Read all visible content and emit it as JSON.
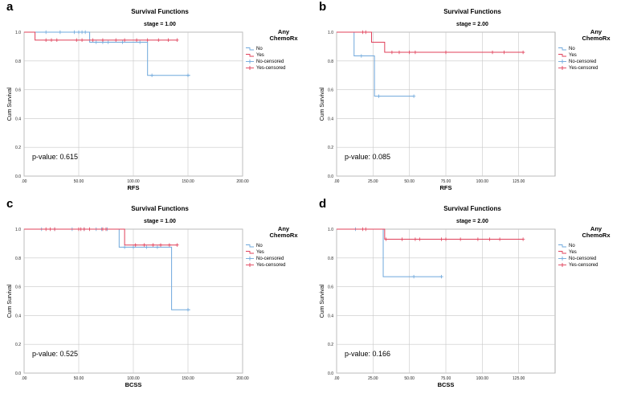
{
  "chart_data": [
    {
      "type": "line",
      "panel_label": "a",
      "title": "Survival Functions",
      "subtitle": "stage = 1.00",
      "xlabel": "RFS",
      "ylabel": "Cum Survival",
      "xlim": [
        0,
        200
      ],
      "ylim": [
        0,
        1
      ],
      "xticks": [
        0,
        50,
        100,
        150,
        200
      ],
      "xtick_labels": [
        ".00",
        "50.00",
        "100.00",
        "150.00",
        "200.00"
      ],
      "yticks": [
        0,
        0.2,
        0.4,
        0.6,
        0.8,
        1.0
      ],
      "ytick_labels": [
        "0.0",
        "0.2",
        "0.4",
        "0.6",
        "0.8",
        "1.0"
      ],
      "grid": true,
      "p_value_text": "p-value: 0.615",
      "legend": {
        "title": "Any ChemoRx",
        "entries": [
          "No",
          "Yes",
          "No-censored",
          "Yes-censored"
        ],
        "position": "right"
      },
      "series": [
        {
          "name": "No",
          "color": "#6fa8dc",
          "steps": [
            [
              0,
              1.0
            ],
            [
              60,
              0.93
            ],
            [
              113,
              0.7
            ],
            [
              152,
              0.7
            ]
          ],
          "censored": [
            [
              20,
              1.0
            ],
            [
              33,
              1.0
            ],
            [
              46,
              1.0
            ],
            [
              50,
              1.0
            ],
            [
              53,
              1.0
            ],
            [
              56,
              1.0
            ],
            [
              66,
              0.93
            ],
            [
              72,
              0.93
            ],
            [
              77,
              0.93
            ],
            [
              90,
              0.93
            ],
            [
              106,
              0.93
            ],
            [
              117,
              0.7
            ],
            [
              150,
              0.7
            ]
          ]
        },
        {
          "name": "Yes",
          "color": "#e0405a",
          "steps": [
            [
              0,
              1.0
            ],
            [
              10,
              0.945
            ],
            [
              140,
              0.945
            ]
          ],
          "censored": [
            [
              20,
              0.945
            ],
            [
              25,
              0.945
            ],
            [
              30,
              0.945
            ],
            [
              48,
              0.945
            ],
            [
              53,
              0.945
            ],
            [
              63,
              0.945
            ],
            [
              72,
              0.945
            ],
            [
              84,
              0.945
            ],
            [
              92,
              0.945
            ],
            [
              103,
              0.945
            ],
            [
              113,
              0.945
            ],
            [
              123,
              0.945
            ],
            [
              132,
              0.945
            ],
            [
              140,
              0.945
            ]
          ]
        }
      ]
    },
    {
      "type": "line",
      "panel_label": "b",
      "title": "Survival Functions",
      "subtitle": "stage = 2.00",
      "xlabel": "RFS",
      "ylabel": "Cum Survival",
      "xlim": [
        0,
        150
      ],
      "ylim": [
        0,
        1
      ],
      "xticks": [
        0,
        25,
        50,
        75,
        100,
        125
      ],
      "xtick_labels": [
        ".00",
        "25.00",
        "50.00",
        "75.00",
        "100.00",
        "125.00"
      ],
      "yticks": [
        0,
        0.2,
        0.4,
        0.6,
        0.8,
        1.0
      ],
      "ytick_labels": [
        "0.0",
        "0.2",
        "0.4",
        "0.6",
        "0.8",
        "1.0"
      ],
      "grid": true,
      "p_value_text": "p-value: 0.085",
      "legend": {
        "title": "Any ChemoRx",
        "entries": [
          "No",
          "Yes",
          "No-censored",
          "Yes-censored"
        ],
        "position": "right"
      },
      "series": [
        {
          "name": "No",
          "color": "#6fa8dc",
          "steps": [
            [
              0,
              1.0
            ],
            [
              12,
              0.835
            ],
            [
              26,
              0.555
            ],
            [
              53,
              0.555
            ]
          ],
          "censored": [
            [
              17,
              0.835
            ],
            [
              29,
              0.555
            ],
            [
              53,
              0.555
            ]
          ]
        },
        {
          "name": "Yes",
          "color": "#e0405a",
          "steps": [
            [
              0,
              1.0
            ],
            [
              24,
              0.93
            ],
            [
              33,
              0.86
            ],
            [
              128,
              0.86
            ]
          ],
          "censored": [
            [
              18,
              1.0
            ],
            [
              20,
              1.0
            ],
            [
              38,
              0.86
            ],
            [
              43,
              0.86
            ],
            [
              50,
              0.86
            ],
            [
              54,
              0.86
            ],
            [
              75,
              0.86
            ],
            [
              107,
              0.86
            ],
            [
              115,
              0.86
            ],
            [
              128,
              0.86
            ]
          ]
        }
      ]
    },
    {
      "type": "line",
      "panel_label": "c",
      "title": "Survival Functions",
      "subtitle": "stage = 1.00",
      "xlabel": "BCSS",
      "ylabel": "Cum Survival",
      "xlim": [
        0,
        200
      ],
      "ylim": [
        0,
        1
      ],
      "xticks": [
        0,
        50,
        100,
        150,
        200
      ],
      "xtick_labels": [
        ".00",
        "50.00",
        "100.00",
        "150.00",
        "200.00"
      ],
      "yticks": [
        0,
        0.2,
        0.4,
        0.6,
        0.8,
        1.0
      ],
      "ytick_labels": [
        "0.0",
        "0.2",
        "0.4",
        "0.6",
        "0.8",
        "1.0"
      ],
      "grid": true,
      "p_value_text": "p-value: 0.525",
      "legend": {
        "title": "Any ChemoRx",
        "entries": [
          "No",
          "Yes",
          "No-censored",
          "Yes-censored"
        ],
        "position": "right"
      },
      "series": [
        {
          "name": "No",
          "color": "#6fa8dc",
          "steps": [
            [
              0,
              1.0
            ],
            [
              87,
              0.875
            ],
            [
              135,
              0.44
            ],
            [
              152,
              0.44
            ]
          ],
          "censored": [
            [
              16,
              1.0
            ],
            [
              28,
              1.0
            ],
            [
              44,
              1.0
            ],
            [
              55,
              1.0
            ],
            [
              66,
              1.0
            ],
            [
              71,
              1.0
            ],
            [
              76,
              1.0
            ],
            [
              92,
              0.875
            ],
            [
              100,
              0.875
            ],
            [
              112,
              0.875
            ],
            [
              122,
              0.875
            ],
            [
              150,
              0.44
            ]
          ]
        },
        {
          "name": "Yes",
          "color": "#e0405a",
          "steps": [
            [
              0,
              1.0
            ],
            [
              92,
              0.89
            ],
            [
              140,
              0.89
            ]
          ],
          "censored": [
            [
              20,
              1.0
            ],
            [
              24,
              1.0
            ],
            [
              28,
              1.0
            ],
            [
              50,
              1.0
            ],
            [
              52,
              1.0
            ],
            [
              55,
              1.0
            ],
            [
              60,
              1.0
            ],
            [
              72,
              1.0
            ],
            [
              75,
              1.0
            ],
            [
              102,
              0.89
            ],
            [
              110,
              0.89
            ],
            [
              118,
              0.89
            ],
            [
              125,
              0.89
            ],
            [
              133,
              0.89
            ],
            [
              140,
              0.89
            ]
          ]
        }
      ]
    },
    {
      "type": "line",
      "panel_label": "d",
      "title": "Survival Functions",
      "subtitle": "stage = 2.00",
      "xlabel": "BCSS",
      "ylabel": "Cum Survival",
      "xlim": [
        0,
        150
      ],
      "ylim": [
        0,
        1
      ],
      "xticks": [
        0,
        25,
        50,
        75,
        100,
        125
      ],
      "xtick_labels": [
        ".00",
        "25.00",
        "50.00",
        "75.00",
        "100.00",
        "125.00"
      ],
      "yticks": [
        0,
        0.2,
        0.4,
        0.6,
        0.8,
        1.0
      ],
      "ytick_labels": [
        "0.0",
        "0.2",
        "0.4",
        "0.6",
        "0.8",
        "1.0"
      ],
      "grid": true,
      "p_value_text": "p-value: 0.166",
      "legend": {
        "title": "Any ChemoRx",
        "entries": [
          "No",
          "Yes",
          "No-censored",
          "Yes-censored"
        ],
        "position": "right"
      },
      "series": [
        {
          "name": "No",
          "color": "#6fa8dc",
          "steps": [
            [
              0,
              1.0
            ],
            [
              32,
              0.67
            ],
            [
              72,
              0.67
            ]
          ],
          "censored": [
            [
              13,
              1.0
            ],
            [
              53,
              0.67
            ],
            [
              72,
              0.67
            ]
          ]
        },
        {
          "name": "Yes",
          "color": "#e0405a",
          "steps": [
            [
              0,
              1.0
            ],
            [
              33,
              0.93
            ],
            [
              128,
              0.93
            ]
          ],
          "censored": [
            [
              18,
              1.0
            ],
            [
              20,
              1.0
            ],
            [
              34,
              0.93
            ],
            [
              45,
              0.93
            ],
            [
              54,
              0.93
            ],
            [
              57,
              0.93
            ],
            [
              72,
              0.93
            ],
            [
              75,
              0.93
            ],
            [
              85,
              0.93
            ],
            [
              97,
              0.93
            ],
            [
              105,
              0.93
            ],
            [
              112,
              0.93
            ],
            [
              128,
              0.93
            ]
          ]
        }
      ]
    }
  ]
}
